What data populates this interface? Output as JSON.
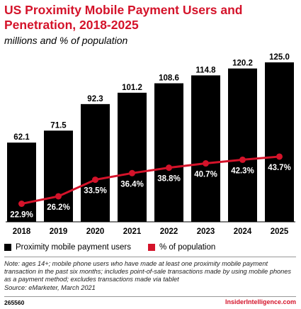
{
  "title": "US Proximity Mobile Payment Users and Penetration, 2018-2025",
  "subtitle": "millions and % of population",
  "note": "Note: ages 14+; mobile phone users who have made at least one proximity mobile payment transaction in the past six months; includes point-of-sale transactions made by using mobile phones as a payment method; excludes transactions made via tablet",
  "source": "Source: eMarketer, March 2021",
  "chart_id": "265560",
  "brand": "InsiderIntelligence.com",
  "colors": {
    "bar": "#000000",
    "line": "#d4132a",
    "title": "#d4132a"
  },
  "chart_data": {
    "type": "bar",
    "categories": [
      "2018",
      "2019",
      "2020",
      "2021",
      "2022",
      "2023",
      "2024",
      "2025"
    ],
    "series": [
      {
        "name": "Proximity mobile payment users",
        "type": "bar",
        "values": [
          62.1,
          71.5,
          92.3,
          101.2,
          108.6,
          114.8,
          120.2,
          125.0
        ],
        "labels": [
          "62.1",
          "71.5",
          "92.3",
          "101.2",
          "108.6",
          "114.8",
          "120.2",
          "125.0"
        ]
      },
      {
        "name": "% of population",
        "type": "line",
        "values": [
          22.9,
          26.2,
          33.5,
          36.4,
          38.8,
          40.7,
          42.3,
          43.7
        ],
        "labels": [
          "22.9%",
          "26.2%",
          "33.5%",
          "36.4%",
          "38.8%",
          "40.7%",
          "42.3%",
          "43.7%"
        ]
      }
    ],
    "legend": "bottom",
    "grid": false
  }
}
